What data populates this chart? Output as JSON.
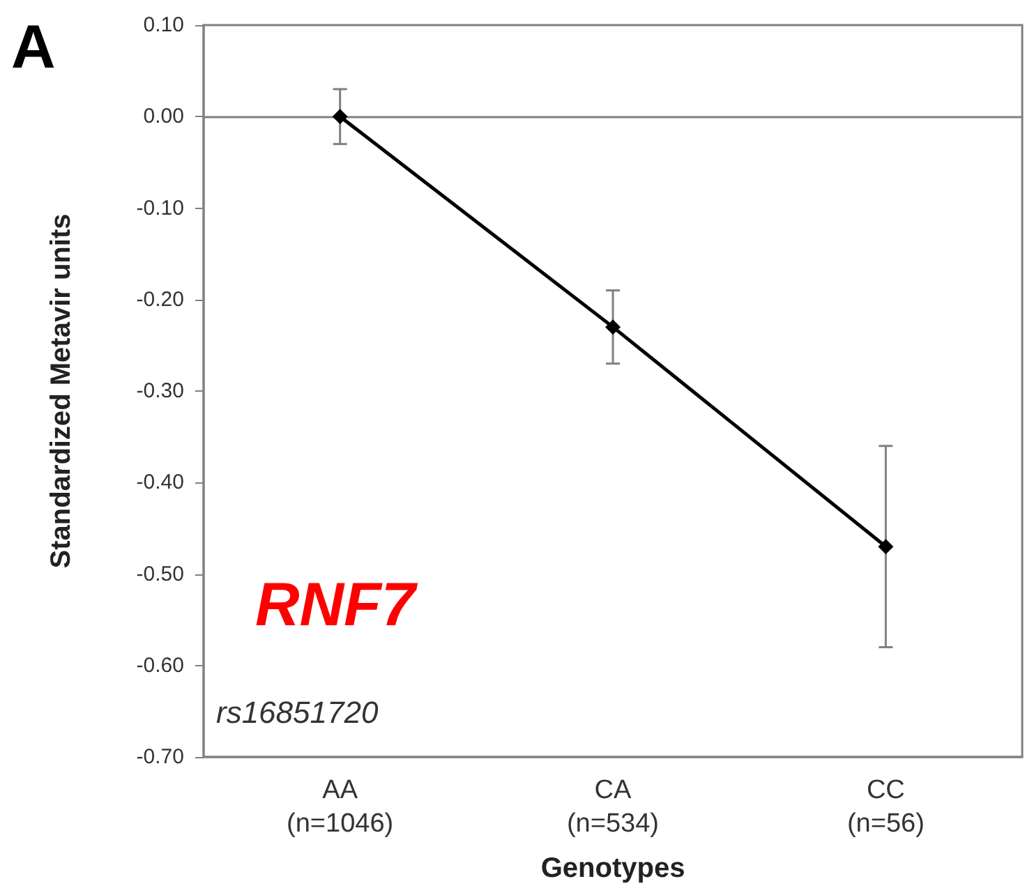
{
  "chart_data": {
    "type": "line",
    "xlabel": "Genotypes",
    "ylabel": "Standardized Metavir units",
    "categories": [
      "AA\n(n=1046)",
      "CA\n(n=534)",
      "CC\n(n=56)"
    ],
    "series": [
      {
        "color": "#000000",
        "values": [
          0.0,
          -0.23,
          -0.47
        ],
        "errors": [
          0.03,
          0.04,
          0.11
        ]
      }
    ],
    "ylim": [
      -0.7,
      0.1
    ],
    "yticks": [
      {
        "value": -0.7,
        "label": "-0.70"
      },
      {
        "value": -0.6,
        "label": "-0.60"
      },
      {
        "value": -0.5,
        "label": "-0.50"
      },
      {
        "value": -0.4,
        "label": "-0.40"
      },
      {
        "value": -0.3,
        "label": "-0.30"
      },
      {
        "value": -0.2,
        "label": "-0.20"
      },
      {
        "value": -0.1,
        "label": "-0.10"
      },
      {
        "value": 0,
        "label": "0.00"
      },
      {
        "value": 0.1,
        "label": "0.10"
      }
    ],
    "marker": "diamond",
    "line_style": "solid",
    "annotations": [
      "A",
      "RNF7",
      "rs16851720"
    ]
  }
}
